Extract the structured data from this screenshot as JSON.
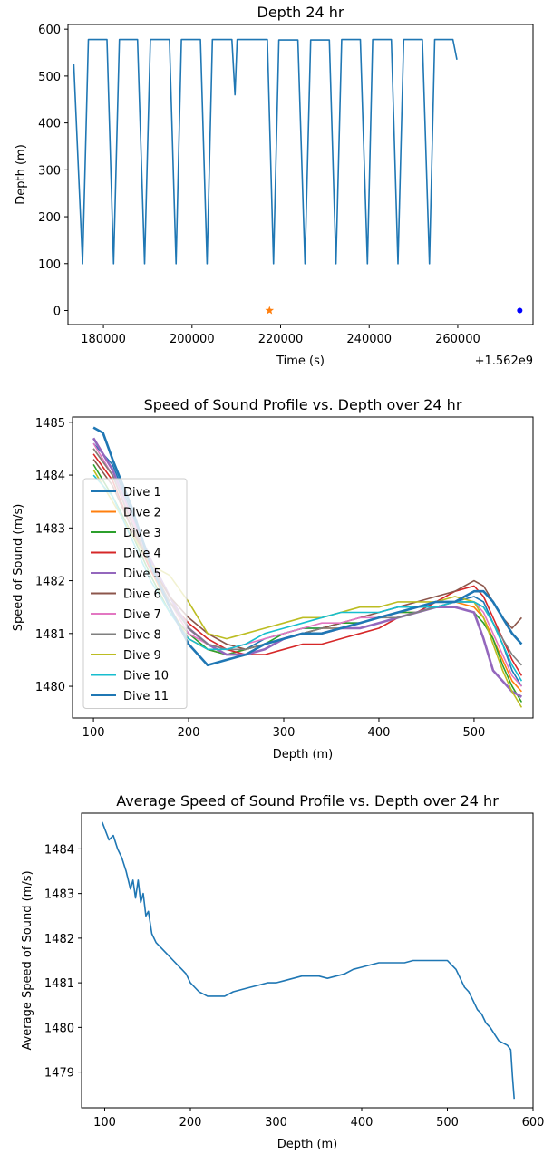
{
  "chart_data": [
    {
      "type": "line",
      "title": "Depth 24 hr",
      "xlabel": "Time (s)",
      "ylabel": "Depth (m)",
      "offset_label": "+1.562e9",
      "xlim": [
        172000,
        277000
      ],
      "ylim": [
        -30,
        610
      ],
      "x_ticks": [
        180000,
        200000,
        220000,
        240000,
        260000
      ],
      "x_tick_labels": [
        "180000",
        "200000",
        "220000",
        "240000",
        "260000"
      ],
      "y_ticks": [
        0,
        100,
        200,
        300,
        400,
        500,
        600
      ],
      "y_tick_labels": [
        "0",
        "100",
        "200",
        "300",
        "400",
        "500",
        "600"
      ],
      "series": [
        {
          "color": "#1f77b4",
          "style": "line",
          "x": [
            173300,
            175300,
            176600,
            180800,
            182300,
            183600,
            187700,
            189300,
            190600,
            194900,
            196400,
            197600,
            201900,
            203400,
            204600,
            209000,
            209700,
            210200,
            217000,
            218400,
            219600,
            223900,
            225500,
            226800,
            231000,
            232500,
            233800,
            238000,
            239600,
            240800,
            245000,
            246500,
            247800,
            252000,
            253600,
            254800,
            258900,
            259800
          ],
          "y": [
            525,
            100,
            578,
            578,
            100,
            578,
            578,
            100,
            578,
            578,
            100,
            578,
            578,
            100,
            578,
            578,
            460,
            578,
            578,
            100,
            577,
            577,
            100,
            577,
            577,
            100,
            578,
            578,
            100,
            578,
            578,
            100,
            578,
            578,
            100,
            578,
            578,
            535
          ]
        },
        {
          "color": "#ff7f0e",
          "style": "star",
          "x": [
            217500
          ],
          "y": [
            0
          ]
        },
        {
          "color": "#0000ff",
          "style": "dot",
          "x": [
            274000
          ],
          "y": [
            0
          ]
        }
      ]
    },
    {
      "type": "line",
      "title": "Speed of Sound Profile vs. Depth over 24 hr",
      "xlabel": "Depth (m)",
      "ylabel": "Speed of Sound (m/s)",
      "xlim": [
        78,
        562
      ],
      "ylim": [
        1479.4,
        1485.1
      ],
      "x_ticks": [
        100,
        200,
        300,
        400,
        500
      ],
      "x_tick_labels": [
        "100",
        "200",
        "300",
        "400",
        "500"
      ],
      "y_ticks": [
        1480,
        1481,
        1482,
        1483,
        1484,
        1485
      ],
      "y_tick_labels": [
        "1480",
        "1481",
        "1482",
        "1483",
        "1484",
        "1485"
      ],
      "legend_position": "left",
      "series": [
        {
          "name": "Dive 1",
          "color": "#1f77b4",
          "x": [
            100,
            120,
            140,
            160,
            180,
            200,
            220,
            240,
            260,
            280,
            300,
            320,
            340,
            360,
            380,
            400,
            420,
            440,
            460,
            480,
            500,
            510,
            520,
            530,
            540,
            550
          ],
          "y": [
            1484.6,
            1484.2,
            1483.3,
            1482.4,
            1481.7,
            1481.1,
            1480.8,
            1480.7,
            1480.7,
            1480.9,
            1481.0,
            1481.1,
            1481.1,
            1481.2,
            1481.2,
            1481.3,
            1481.4,
            1481.5,
            1481.5,
            1481.6,
            1481.7,
            1481.6,
            1481.2,
            1480.8,
            1480.3,
            1480.0
          ]
        },
        {
          "name": "Dive 2",
          "color": "#ff7f0e",
          "x": [
            100,
            120,
            140,
            160,
            180,
            200,
            220,
            240,
            260,
            280,
            300,
            320,
            340,
            360,
            380,
            400,
            420,
            440,
            460,
            480,
            500,
            510,
            520,
            530,
            540,
            550
          ],
          "y": [
            1484.5,
            1484.0,
            1483.1,
            1482.2,
            1481.5,
            1480.9,
            1480.7,
            1480.6,
            1480.7,
            1480.8,
            1480.9,
            1481.0,
            1481.1,
            1481.1,
            1481.2,
            1481.3,
            1481.4,
            1481.4,
            1481.5,
            1481.6,
            1481.5,
            1481.3,
            1480.9,
            1480.5,
            1480.1,
            1479.9
          ]
        },
        {
          "name": "Dive 3",
          "color": "#2ca02c",
          "x": [
            100,
            120,
            140,
            160,
            180,
            200,
            220,
            240,
            260,
            280,
            300,
            320,
            340,
            360,
            380,
            400,
            420,
            440,
            460,
            480,
            500,
            510,
            520,
            530,
            540,
            550
          ],
          "y": [
            1484.2,
            1483.6,
            1482.9,
            1482.1,
            1481.4,
            1481.0,
            1480.7,
            1480.6,
            1480.7,
            1480.8,
            1481.0,
            1481.1,
            1481.1,
            1481.2,
            1481.2,
            1481.3,
            1481.4,
            1481.4,
            1481.5,
            1481.5,
            1481.4,
            1481.2,
            1480.9,
            1480.4,
            1480.0,
            1479.7
          ]
        },
        {
          "name": "Dive 4",
          "color": "#d62728",
          "x": [
            100,
            120,
            140,
            160,
            180,
            200,
            220,
            240,
            260,
            280,
            300,
            320,
            340,
            360,
            380,
            400,
            420,
            440,
            460,
            480,
            500,
            510,
            520,
            530,
            540,
            550
          ],
          "y": [
            1484.4,
            1483.9,
            1483.0,
            1482.2,
            1481.6,
            1481.2,
            1480.9,
            1480.7,
            1480.6,
            1480.6,
            1480.7,
            1480.8,
            1480.8,
            1480.9,
            1481.0,
            1481.1,
            1481.3,
            1481.4,
            1481.6,
            1481.8,
            1481.9,
            1481.7,
            1481.3,
            1480.9,
            1480.5,
            1480.2
          ]
        },
        {
          "name": "Dive 5",
          "color": "#9467bd",
          "x": [
            100,
            120,
            140,
            160,
            180,
            200,
            220,
            240,
            260,
            280,
            300,
            320,
            340,
            360,
            380,
            400,
            420,
            440,
            460,
            480,
            500,
            510,
            520,
            530,
            540,
            550
          ],
          "y": [
            1484.7,
            1484.1,
            1483.2,
            1482.4,
            1481.7,
            1481.1,
            1480.8,
            1480.6,
            1480.6,
            1480.7,
            1480.9,
            1481.0,
            1481.0,
            1481.1,
            1481.1,
            1481.2,
            1481.3,
            1481.4,
            1481.5,
            1481.5,
            1481.4,
            1480.9,
            1480.3,
            1480.1,
            1479.9,
            1479.8
          ]
        },
        {
          "name": "Dive 6",
          "color": "#8c564b",
          "x": [
            100,
            120,
            140,
            160,
            180,
            200,
            220,
            240,
            260,
            280,
            300,
            320,
            340,
            360,
            380,
            400,
            420,
            440,
            460,
            480,
            500,
            510,
            520,
            530,
            540,
            550
          ],
          "y": [
            1484.3,
            1483.8,
            1483.0,
            1482.3,
            1481.7,
            1481.3,
            1481.0,
            1480.8,
            1480.7,
            1480.8,
            1480.9,
            1481.0,
            1481.1,
            1481.2,
            1481.3,
            1481.4,
            1481.5,
            1481.6,
            1481.7,
            1481.8,
            1482.0,
            1481.9,
            1481.6,
            1481.3,
            1481.1,
            1481.3
          ]
        },
        {
          "name": "Dive 7",
          "color": "#e377c2",
          "x": [
            100,
            120,
            140,
            160,
            180,
            200,
            220,
            240,
            260,
            280,
            300,
            320,
            340,
            360,
            380,
            400,
            420,
            440,
            460,
            480,
            500,
            510,
            520,
            530,
            540,
            550
          ],
          "y": [
            1484.6,
            1484.0,
            1483.2,
            1482.3,
            1481.6,
            1481.0,
            1480.8,
            1480.7,
            1480.8,
            1480.9,
            1481.0,
            1481.1,
            1481.2,
            1481.2,
            1481.3,
            1481.3,
            1481.4,
            1481.5,
            1481.5,
            1481.6,
            1481.6,
            1481.4,
            1481.0,
            1480.6,
            1480.2,
            1480.0
          ]
        },
        {
          "name": "Dive 8",
          "color": "#7f7f7f",
          "x": [
            100,
            120,
            140,
            160,
            180,
            200,
            220,
            240,
            260,
            280,
            300,
            320,
            340,
            360,
            380,
            400,
            420,
            440,
            460,
            480,
            500,
            510,
            520,
            530,
            540,
            550
          ],
          "y": [
            1484.5,
            1484.0,
            1483.1,
            1482.3,
            1481.6,
            1481.1,
            1480.8,
            1480.7,
            1480.7,
            1480.8,
            1480.9,
            1481.0,
            1481.1,
            1481.1,
            1481.2,
            1481.3,
            1481.3,
            1481.4,
            1481.5,
            1481.6,
            1481.6,
            1481.5,
            1481.2,
            1480.9,
            1480.6,
            1480.4
          ]
        },
        {
          "name": "Dive 9",
          "color": "#bcbd22",
          "x": [
            100,
            120,
            140,
            160,
            180,
            200,
            220,
            240,
            260,
            280,
            300,
            320,
            340,
            360,
            380,
            400,
            420,
            440,
            460,
            480,
            500,
            510,
            520,
            530,
            540,
            550
          ],
          "y": [
            1484.1,
            1483.5,
            1482.9,
            1482.3,
            1482.1,
            1481.6,
            1481.0,
            1480.9,
            1481.0,
            1481.1,
            1481.2,
            1481.3,
            1481.3,
            1481.4,
            1481.5,
            1481.5,
            1481.6,
            1481.6,
            1481.6,
            1481.7,
            1481.6,
            1481.3,
            1480.8,
            1480.3,
            1479.9,
            1479.6
          ]
        },
        {
          "name": "Dive 10",
          "color": "#17becf",
          "x": [
            100,
            120,
            140,
            160,
            180,
            200,
            220,
            240,
            260,
            280,
            300,
            320,
            340,
            360,
            380,
            400,
            420,
            440,
            460,
            480,
            500,
            510,
            520,
            530,
            540,
            550
          ],
          "y": [
            1484.0,
            1483.6,
            1482.8,
            1482.0,
            1481.4,
            1480.9,
            1480.7,
            1480.7,
            1480.8,
            1481.0,
            1481.1,
            1481.2,
            1481.3,
            1481.4,
            1481.4,
            1481.4,
            1481.5,
            1481.5,
            1481.5,
            1481.6,
            1481.6,
            1481.5,
            1481.2,
            1480.8,
            1480.4,
            1480.1
          ]
        },
        {
          "name": "Dive 11",
          "color": "#1f77b4",
          "x": [
            100,
            110,
            120,
            140,
            160,
            180,
            200,
            220,
            240,
            260,
            280,
            300,
            320,
            340,
            360,
            380,
            400,
            420,
            440,
            460,
            480,
            500,
            510,
            520,
            530,
            540,
            550
          ],
          "y": [
            1484.9,
            1484.8,
            1484.3,
            1483.4,
            1482.3,
            1481.5,
            1480.8,
            1480.4,
            1480.5,
            1480.6,
            1480.8,
            1480.9,
            1481.0,
            1481.0,
            1481.1,
            1481.2,
            1481.3,
            1481.4,
            1481.5,
            1481.6,
            1481.6,
            1481.8,
            1481.8,
            1481.6,
            1481.3,
            1481.0,
            1480.8
          ]
        }
      ]
    },
    {
      "type": "line",
      "title": "Average Speed of Sound Profile vs. Depth over 24 hr",
      "xlabel": "Depth (m)",
      "ylabel": "Average Speed of Sound (m/s)",
      "xlim": [
        73,
        600
      ],
      "ylim": [
        1478.2,
        1484.8
      ],
      "x_ticks": [
        100,
        200,
        300,
        400,
        500,
        600
      ],
      "x_tick_labels": [
        "100",
        "200",
        "300",
        "400",
        "500",
        "600"
      ],
      "y_ticks": [
        1479,
        1480,
        1481,
        1482,
        1483,
        1484
      ],
      "y_tick_labels": [
        "1479",
        "1480",
        "1481",
        "1482",
        "1483",
        "1484"
      ],
      "series": [
        {
          "color": "#1f77b4",
          "x": [
            97,
            105,
            110,
            115,
            120,
            125,
            130,
            133,
            136,
            139,
            142,
            145,
            148,
            151,
            155,
            160,
            165,
            170,
            175,
            180,
            185,
            190,
            195,
            200,
            205,
            210,
            215,
            220,
            230,
            240,
            250,
            260,
            270,
            280,
            290,
            300,
            310,
            320,
            330,
            340,
            350,
            360,
            370,
            380,
            390,
            400,
            410,
            420,
            430,
            440,
            450,
            460,
            470,
            480,
            490,
            500,
            505,
            510,
            515,
            520,
            525,
            530,
            535,
            540,
            545,
            550,
            555,
            560,
            565,
            570,
            574,
            576,
            578
          ],
          "y": [
            1484.6,
            1484.2,
            1484.3,
            1484.0,
            1483.8,
            1483.5,
            1483.1,
            1483.3,
            1482.9,
            1483.3,
            1482.8,
            1483.0,
            1482.5,
            1482.6,
            1482.1,
            1481.9,
            1481.8,
            1481.7,
            1481.6,
            1481.5,
            1481.4,
            1481.3,
            1481.2,
            1481.0,
            1480.9,
            1480.8,
            1480.75,
            1480.7,
            1480.7,
            1480.7,
            1480.8,
            1480.85,
            1480.9,
            1480.95,
            1481.0,
            1481.0,
            1481.05,
            1481.1,
            1481.15,
            1481.15,
            1481.15,
            1481.1,
            1481.15,
            1481.2,
            1481.3,
            1481.35,
            1481.4,
            1481.45,
            1481.45,
            1481.45,
            1481.45,
            1481.5,
            1481.5,
            1481.5,
            1481.5,
            1481.5,
            1481.4,
            1481.3,
            1481.1,
            1480.9,
            1480.8,
            1480.6,
            1480.4,
            1480.3,
            1480.1,
            1480.0,
            1479.85,
            1479.7,
            1479.65,
            1479.6,
            1479.5,
            1478.9,
            1478.4
          ]
        }
      ]
    }
  ]
}
